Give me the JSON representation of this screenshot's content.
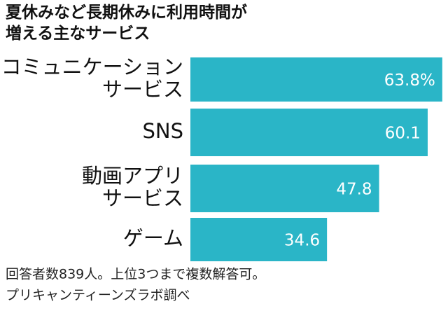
{
  "chart_data": {
    "type": "bar",
    "orientation": "horizontal",
    "title": "夏休みなど長期休みに利用時間が\n増える主なサービス",
    "categories": [
      "コミュニケーション\nサービス",
      "SNS",
      "動画アプリ\nサービス",
      "ゲーム"
    ],
    "values": [
      63.8,
      60.1,
      47.8,
      34.6
    ],
    "value_labels": [
      "63.8%",
      "60.1",
      "47.8",
      "34.6"
    ],
    "color": "#2ab5c7",
    "note": "回答者数839人。上位3つまで複数解答可。",
    "source": "プリキャンティーンズラボ調べ"
  }
}
